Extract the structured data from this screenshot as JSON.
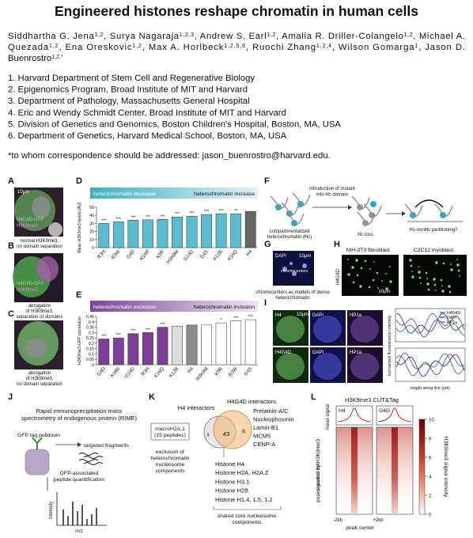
{
  "title": "Engineered histones reshape chromatin in human cells",
  "authors": [
    [
      {
        "text": "Siddhartha G. Jena",
        "sup": "1,2"
      },
      {
        "text": ", Surya Nagaraja",
        "sup": "1,2,3"
      },
      {
        "text": ", Andrew S. Earl",
        "sup": "1,2"
      },
      {
        "text": ", Amalia R. Driller-Colangelo",
        "sup": "1,2"
      },
      {
        "text": ", Michael A."
      }
    ],
    [
      {
        "text": "Quezada",
        "sup": "1,2"
      },
      {
        "text": ", Ena Oreskovic",
        "sup": "1,2"
      },
      {
        "text": ", Max A. Horlbeck",
        "sup": "1,2,5,6"
      },
      {
        "text": ", Ruochi Zhang",
        "sup": "1,2,4"
      },
      {
        "text": ", Wilson Gomarga",
        "sup": "1"
      },
      {
        "text": ", Jason D."
      }
    ],
    [
      {
        "text": "Buenrostro",
        "sup": "1,2,*"
      }
    ]
  ],
  "affiliations": [
    "1. Harvard Department of Stem Cell and Regenerative Biology",
    "2. Epigenomics Program, Broad Institute of MIT and Harvard",
    "3. Department of Pathology, Massachusetts General Hospital",
    "4. Eric and Wendy Schmidt Center, Broad Institute of MIT and Harvard",
    "5. Division of Genetics and Genomics, Boston Children's Hospital, Boston, MA, USA",
    "6. Department of Genetics, Harvard Medical School, Boston, MA, USA"
  ],
  "correspondence": "*to whom correspondence should be addressed: jason_buenrostro@harvard.edu.",
  "panels": {
    "A": {
      "label": "A",
      "scale": "10μm",
      "channels": [
        "H4G4D-GFP",
        "H3K9me3"
      ],
      "caption": [
        "normal H3K9me3,",
        "no domain separation"
      ]
    },
    "B": {
      "label": "B",
      "channels": [
        "H4G4D-GFP",
        "H3K9me3"
      ],
      "caption": [
        "abrogation",
        "of H3K9me3,",
        "separation of domains"
      ]
    },
    "C": {
      "label": "C",
      "caption": [
        "abrogation",
        "of H3K9me3,",
        "no domain separation"
      ]
    },
    "D": {
      "label": "D",
      "chart": {
        "type": "bar",
        "header_left": "heterochromatin decrease",
        "header_right": "heterochromatin increase",
        "ylabel": "Mean H3K9me3 levels (AU)",
        "categories": [
          "R3H",
          "R3W",
          "G4D",
          "K16R",
          "K5R",
          "H3K9M",
          "G14D",
          "G4S",
          "K12R",
          "K16Q",
          "H4"
        ],
        "values": [
          30,
          32,
          34,
          34.5,
          35,
          38,
          39,
          41,
          42,
          42,
          45
        ],
        "colors": [
          "#5bbccd",
          "#5bbccd",
          "#5bbccd",
          "#5bbccd",
          "#5bbccd",
          "#5bbccd",
          "#5bbccd",
          "#5bbccd",
          "#5bbccd",
          "#5bbccd",
          "#666666"
        ],
        "sig": [
          "***",
          "***",
          "***",
          "***",
          "***",
          "***",
          "***",
          "***",
          "***",
          "**",
          null
        ],
        "ylim": [
          0,
          50
        ],
        "yticks": [
          0,
          10,
          20,
          30,
          40,
          50
        ]
      }
    },
    "E": {
      "label": "E",
      "chart": {
        "type": "bar",
        "header_left": "heterochromatin exclusion",
        "header_right": "heterochromatin inclusion",
        "ylabel": "H3K9me3-GFP correlation",
        "categories": [
          "G4D",
          "K16R",
          "G14D",
          "R3H",
          "K16Q",
          "K12R",
          "H4",
          "H3K9M",
          "K5R",
          "R3W",
          "G4S"
        ],
        "values": [
          0.24,
          0.25,
          0.29,
          0.3,
          0.35,
          0.36,
          0.37,
          0.37,
          0.39,
          0.41,
          0.42
        ],
        "colors": [
          "#7b3f96",
          "#7b3f96",
          "#7b3f96",
          "#7b3f96",
          "#7b3f96",
          "#dddddd",
          "#8c8c8c",
          "#ffffff",
          "#ffffff",
          "#ffffff",
          "#ffffff"
        ],
        "sig": [
          "***",
          "***",
          "***",
          "***",
          "***",
          null,
          null,
          null,
          "*",
          "***",
          "***"
        ],
        "ylim": [
          0,
          0.45
        ],
        "yticks": [
          0,
          0.05,
          0.1,
          0.15,
          0.2,
          0.25,
          0.3,
          0.35,
          0.4,
          0.45
        ]
      }
    },
    "F": {
      "label": "F",
      "step": [
        "introduction of mutant",
        "into Hc domain"
      ],
      "start": [
        "compartmentalized",
        "heterochromatin (Hc)"
      ],
      "loss": "Hc loss",
      "question": "Hc-nonHc partitioning?"
    },
    "G": {
      "label": "G",
      "channel": "DAPI",
      "scale": "10μm",
      "marker": "chromocenters",
      "caption": [
        "chromocenters as models of dense",
        "heterochromatin"
      ]
    },
    "H": {
      "label": "H",
      "cells": [
        "NIH-3T3 fibroblast",
        "C2C12 myoblast"
      ],
      "row": "H4G4D",
      "scale": "10μm"
    },
    "I": {
      "label": "I",
      "rows": [
        [
          "H4",
          "DAPI",
          "HP1a"
        ],
        [
          "H4G4D",
          "DAPI",
          "HP1a"
        ]
      ],
      "scale": "10μm",
      "legend": [
        "H4G4D",
        "DAPI",
        "HP1a"
      ],
      "ylabel": "normalized fluorescence intensity",
      "xlabel": "length along line (μm)"
    },
    "J": {
      "label": "J",
      "heading": [
        "Rapid immunoprecipitation mass",
        "spectrometry of endogenous protein (RIME)"
      ],
      "pulldown": "GFP tag pulldown",
      "fragments": "targeted fragments",
      "quant": [
        "GFP-associated",
        "peptide quantification"
      ],
      "ylabel": "intensity",
      "xlabel": "m/z"
    },
    "K": {
      "label": "K",
      "left_title": "H4 interactors",
      "right_title": "H4G4D interactors",
      "unique_left": [
        "macroH2A.1",
        "(15 peptides)"
      ],
      "counts": [
        "1",
        "43",
        "6"
      ],
      "right_list": [
        "Prelamin-A/C",
        "Nucleophosmin",
        "Lamin-B1",
        "MCM5",
        "CENP-A"
      ],
      "exclusion": [
        "exclusion of",
        "heterochromatin",
        "nucleosome",
        "components"
      ],
      "shared_list": [
        "Histone H4",
        "Histone H2A, H2A.Z",
        "Histone H3.1",
        "Histone H2B",
        "Histone H1.4, 1.5, 1.2"
      ],
      "shared_caption": [
        "shared core nucleosome",
        "components"
      ]
    },
    "L": {
      "label": "L",
      "title": "H3K9me3 CUT&Tag",
      "columns": [
        "H4",
        "G4D"
      ],
      "profile_label": "mean signal",
      "ylabel": [
        "peaks sorted by H3K9me3",
        "signal in H4"
      ],
      "xticks": [
        "-2kb",
        "+2kb"
      ],
      "xlabel": "peak center",
      "colorbar": {
        "lim": [
          0,
          10
        ],
        "ticks": [
          0,
          2,
          4,
          6,
          8,
          10
        ],
        "label": "H3K9me3 signal intensity"
      }
    }
  }
}
